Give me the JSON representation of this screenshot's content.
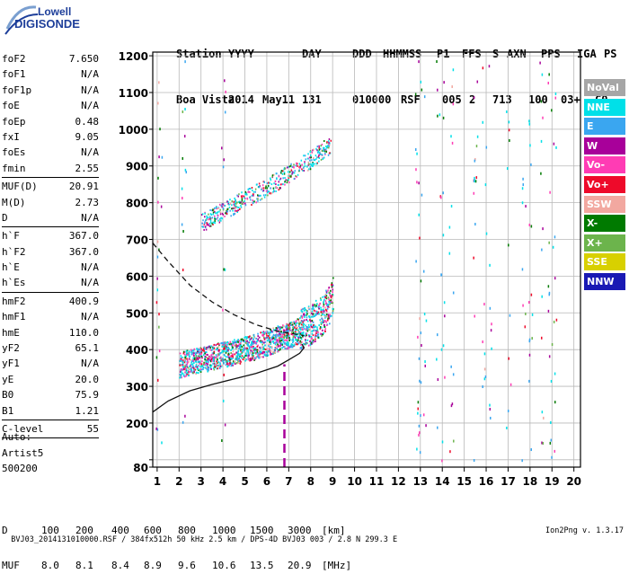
{
  "logo": {
    "line1": "Lowell",
    "line2": "DIGISONDE"
  },
  "header": {
    "labels": [
      "Station",
      "YYYY",
      "DAY",
      "DDD",
      "HHMMSS",
      "P1",
      "FFS",
      "S",
      "AXN",
      "PPS",
      "IGA",
      "PS"
    ],
    "values": [
      "Boa Vista",
      "2014",
      "May11",
      "131",
      "010000",
      "RSF",
      "005",
      "2",
      "713",
      "100",
      "03+",
      "C0"
    ]
  },
  "params": [
    {
      "name": "foF2",
      "value": "7.650"
    },
    {
      "name": "foF1",
      "value": "N/A"
    },
    {
      "name": "foF1p",
      "value": "N/A"
    },
    {
      "name": "foE",
      "value": "N/A"
    },
    {
      "name": "foEp",
      "value": "0.48"
    },
    {
      "name": "fxI",
      "value": "9.05"
    },
    {
      "name": "foEs",
      "value": "N/A"
    },
    {
      "name": "fmin",
      "value": "2.55"
    },
    {
      "divider": true
    },
    {
      "name": "MUF(D)",
      "value": "20.91"
    },
    {
      "name": "M(D)",
      "value": "2.73"
    },
    {
      "name": "D",
      "value": "N/A"
    },
    {
      "divider": true
    },
    {
      "name": "h`F",
      "value": "367.0"
    },
    {
      "name": "h`F2",
      "value": "367.0"
    },
    {
      "name": "h`E",
      "value": "N/A"
    },
    {
      "name": "h`Es",
      "value": "N/A"
    },
    {
      "divider": true
    },
    {
      "name": "hmF2",
      "value": "400.9"
    },
    {
      "name": "hmF1",
      "value": "N/A"
    },
    {
      "name": "hmE",
      "value": "110.0"
    },
    {
      "name": "yF2",
      "value": "65.1"
    },
    {
      "name": "yF1",
      "value": "N/A"
    },
    {
      "name": "yE",
      "value": "20.0"
    },
    {
      "name": "B0",
      "value": "75.9"
    },
    {
      "name": "B1",
      "value": "1.21"
    },
    {
      "divider": true
    },
    {
      "name": "C-level",
      "value": "55"
    },
    {
      "divider": true
    }
  ],
  "artist": [
    "Auto:",
    "Artist5",
    "500200"
  ],
  "muf_table": {
    "d_label": "D",
    "muf_label": "MUF",
    "d_values": [
      "100",
      "200",
      "400",
      "600",
      "800",
      "1000",
      "1500",
      "3000",
      "[km]"
    ],
    "muf_values": [
      "8.0",
      "8.1",
      "8.4",
      "8.9",
      "9.6",
      "10.6",
      "13.5",
      "20.9",
      "[MHz]"
    ]
  },
  "footer": {
    "left": "BVJ03_2014131010000.RSF / 384fx512h 50 kHz 2.5 km / DPS-4D BVJ03 003 / 2.8 N 299.3 E",
    "right": "Ion2Png v. 1.3.17"
  },
  "legend": [
    {
      "label": "NoVal",
      "color": "#a6a6a6"
    },
    {
      "label": "NNE",
      "color": "#00e0e8"
    },
    {
      "label": "E",
      "color": "#3aa6f0"
    },
    {
      "label": "W",
      "color": "#a8009a"
    },
    {
      "label": "Vo-",
      "color": "#ff3cb4"
    },
    {
      "label": "Vo+",
      "color": "#ee0a2a"
    },
    {
      "label": "SSW",
      "color": "#f2a8a0"
    },
    {
      "label": "X-",
      "color": "#007a00"
    },
    {
      "label": "X+",
      "color": "#6cb44c"
    },
    {
      "label": "SSE",
      "color": "#d8d000"
    },
    {
      "label": "NNW",
      "color": "#1a1ab4"
    }
  ],
  "chart_data": {
    "type": "scatter",
    "title": "",
    "xlabel": "",
    "ylabel": "",
    "xlim": [
      0.8,
      20.3
    ],
    "ylim": [
      80,
      1210
    ],
    "x_ticks": [
      1,
      2,
      3,
      4,
      5,
      6,
      7,
      8,
      9,
      10,
      11,
      12,
      13,
      14,
      15,
      16,
      17,
      18,
      19,
      20
    ],
    "y_ticks": [
      80,
      100,
      200,
      300,
      400,
      500,
      600,
      700,
      800,
      900,
      1000,
      1100,
      1200
    ],
    "y_tick_labels": [
      "80",
      "",
      "200",
      "300",
      "400",
      "500",
      "600",
      "700",
      "800",
      "900",
      "1000",
      "1100",
      "1200"
    ],
    "grid": true,
    "legend_position": "right",
    "series": [
      {
        "name": "trace_F2_o",
        "x": [
          2.0,
          2.5,
          3.0,
          3.5,
          4.0,
          4.5,
          5.0,
          5.5,
          6.0,
          6.5,
          7.0,
          7.5,
          8.0,
          8.5,
          8.8,
          9.0
        ],
        "y": [
          360,
          368,
          375,
          380,
          388,
          395,
          402,
          410,
          420,
          432,
          440,
          455,
          470,
          495,
          520,
          550
        ]
      },
      {
        "name": "trace_F2_2hop",
        "x": [
          3.0,
          3.5,
          4.0,
          4.5,
          5.0,
          5.5,
          6.0,
          6.5,
          7.0,
          7.5,
          8.0,
          8.5,
          8.9
        ],
        "y": [
          748,
          762,
          778,
          795,
          812,
          828,
          845,
          862,
          880,
          900,
          920,
          945,
          958
        ]
      },
      {
        "name": "profile_solid",
        "x": [
          0.8,
          1.5,
          2.5,
          3.5,
          4.5,
          5.5,
          6.5,
          7.0,
          7.5,
          7.7,
          7.6
        ],
        "y": [
          230,
          260,
          288,
          305,
          320,
          335,
          355,
          372,
          390,
          405,
          415
        ]
      },
      {
        "name": "profile_dashed",
        "x": [
          0.8,
          1.5,
          2.5,
          3.5,
          4.5,
          5.5,
          6.5,
          7.0,
          7.5,
          7.7
        ],
        "y": [
          690,
          640,
          575,
          530,
          495,
          468,
          450,
          445,
          440,
          438
        ]
      },
      {
        "name": "vertical_dashed",
        "x": [
          6.8,
          6.8
        ],
        "y": [
          80,
          360
        ]
      }
    ]
  }
}
